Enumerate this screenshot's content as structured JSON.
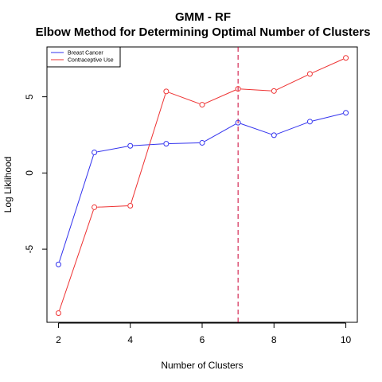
{
  "chart_data": {
    "type": "line",
    "title": "GMM - RF",
    "subtitle": "Elbow Method for Determining Optimal Number of Clusters",
    "xlabel": "Number of Clusters",
    "ylabel": "Log Liklihood",
    "x": [
      2,
      3,
      4,
      5,
      6,
      7,
      8,
      9,
      10
    ],
    "x_ticks": [
      2,
      4,
      6,
      8,
      10
    ],
    "y_ticks": [
      -5,
      0,
      5
    ],
    "xlim": [
      1.68,
      10.32
    ],
    "ylim": [
      -9.8,
      8.27
    ],
    "series": [
      {
        "name": "Breast Cancer",
        "color": "#3333ee",
        "values": [
          -6.0,
          1.35,
          1.78,
          1.92,
          1.98,
          3.3,
          2.48,
          3.37,
          3.95
        ]
      },
      {
        "name": "Contraceptive Use",
        "color": "#ee3333",
        "values": [
          -9.2,
          -2.25,
          -2.15,
          5.35,
          4.48,
          5.52,
          5.38,
          6.5,
          7.55
        ]
      }
    ],
    "vline": {
      "x": 7,
      "color": "#cc0033",
      "style": "dashed"
    },
    "grid": false,
    "legend_position": "top-left"
  }
}
